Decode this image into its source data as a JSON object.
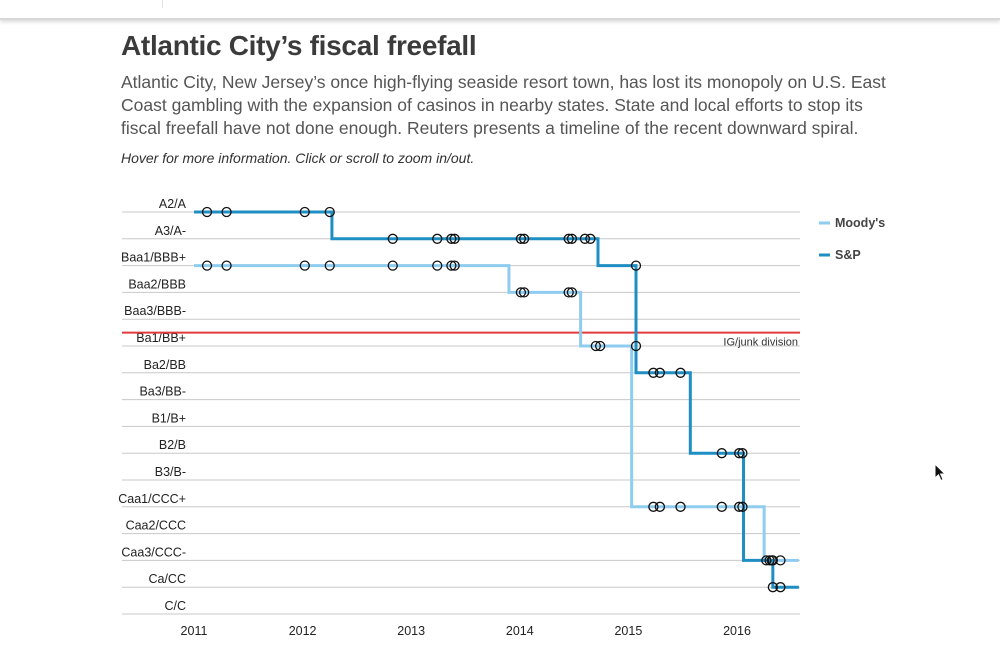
{
  "header": {
    "title": "Atlantic City’s fiscal freefall",
    "description": "Atlantic City, New Jersey’s once high-flying seaside resort town, has lost its monopoly on U.S. East Coast gambling with the expansion of casinos in nearby states. State and local efforts to stop its fiscal freefall have not done enough. Reuters presents a timeline of the recent downward spiral.",
    "hint": "Hover for more information. Click or scroll to zoom in/out."
  },
  "chart_data": {
    "type": "line",
    "step": true,
    "y_categories": [
      "A2/A",
      "A3/A-",
      "Baa1/BBB+",
      "Baa2/BBB",
      "Baa3/BBB-",
      "Ba1/BB+",
      "Ba2/BB",
      "Ba3/BB-",
      "B1/B+",
      "B2/B",
      "B3/B-",
      "Caa1/CCC+",
      "Caa2/CCC",
      "Caa3/CCC-",
      "Ca/CC",
      "C/C"
    ],
    "x_ticks": [
      "2011",
      "2012",
      "2013",
      "2014",
      "2015",
      "2016"
    ],
    "xlim": [
      2011,
      2016.57
    ],
    "grid": true,
    "legend_position": "right",
    "annotation": {
      "label": "IG/junk division",
      "between": [
        "Baa3/BBB-",
        "Ba1/BB+"
      ],
      "color": "#e03a3e"
    },
    "series": [
      {
        "name": "Moody's",
        "color": "#8ecdf0",
        "steps": [
          [
            2011.0,
            "Baa1/BBB+"
          ],
          [
            2013.9,
            "Baa2/BBB"
          ],
          [
            2014.56,
            "Ba1/BB+"
          ],
          [
            2015.03,
            "Caa1/CCC+"
          ],
          [
            2016.25,
            "Caa3/CCC-"
          ],
          [
            2016.57,
            "Caa3/CCC-"
          ]
        ],
        "events": [
          [
            2011.12,
            "Baa1/BBB+"
          ],
          [
            2011.3,
            "Baa1/BBB+"
          ],
          [
            2012.02,
            "Baa1/BBB+"
          ],
          [
            2012.25,
            "Baa1/BBB+"
          ],
          [
            2012.83,
            "Baa1/BBB+"
          ],
          [
            2013.24,
            "Baa1/BBB+"
          ],
          [
            2013.37,
            "Baa1/BBB+"
          ],
          [
            2013.4,
            "Baa1/BBB+"
          ],
          [
            2014.01,
            "Baa2/BBB"
          ],
          [
            2014.04,
            "Baa2/BBB"
          ],
          [
            2014.45,
            "Baa2/BBB"
          ],
          [
            2014.48,
            "Baa2/BBB"
          ],
          [
            2014.7,
            "Ba1/BB+"
          ],
          [
            2014.74,
            "Ba1/BB+"
          ],
          [
            2015.07,
            "Ba1/BB+"
          ],
          [
            2015.23,
            "Caa1/CCC+"
          ],
          [
            2015.29,
            "Caa1/CCC+"
          ],
          [
            2015.48,
            "Caa1/CCC+"
          ],
          [
            2015.86,
            "Caa1/CCC+"
          ],
          [
            2016.02,
            "Caa1/CCC+"
          ],
          [
            2016.05,
            "Caa1/CCC+"
          ],
          [
            2016.27,
            "Caa3/CCC-"
          ],
          [
            2016.32,
            "Caa3/CCC-"
          ],
          [
            2016.4,
            "Caa3/CCC-"
          ]
        ]
      },
      {
        "name": "S&P",
        "color": "#1f8ec2",
        "steps": [
          [
            2011.0,
            "A2/A"
          ],
          [
            2012.27,
            "A3/A-"
          ],
          [
            2014.72,
            "Baa1/BBB+"
          ],
          [
            2015.07,
            "Ba2/BB"
          ],
          [
            2015.57,
            "B2/B"
          ],
          [
            2016.06,
            "Caa3/CCC-"
          ],
          [
            2016.33,
            "Ca/CC"
          ],
          [
            2016.57,
            "Ca/CC"
          ]
        ],
        "events": [
          [
            2011.12,
            "A2/A"
          ],
          [
            2011.3,
            "A2/A"
          ],
          [
            2012.02,
            "A2/A"
          ],
          [
            2012.25,
            "A2/A"
          ],
          [
            2012.83,
            "A3/A-"
          ],
          [
            2013.24,
            "A3/A-"
          ],
          [
            2013.37,
            "A3/A-"
          ],
          [
            2013.4,
            "A3/A-"
          ],
          [
            2014.01,
            "A3/A-"
          ],
          [
            2014.04,
            "A3/A-"
          ],
          [
            2014.45,
            "A3/A-"
          ],
          [
            2014.48,
            "A3/A-"
          ],
          [
            2014.6,
            "A3/A-"
          ],
          [
            2014.65,
            "A3/A-"
          ],
          [
            2015.07,
            "Baa1/BBB+"
          ],
          [
            2015.23,
            "Ba2/BB"
          ],
          [
            2015.29,
            "Ba2/BB"
          ],
          [
            2015.48,
            "Ba2/BB"
          ],
          [
            2015.86,
            "B2/B"
          ],
          [
            2016.02,
            "B2/B"
          ],
          [
            2016.05,
            "B2/B"
          ],
          [
            2016.3,
            "Caa3/CCC-"
          ],
          [
            2016.33,
            "Caa3/CCC-"
          ],
          [
            2016.33,
            "Ca/CC"
          ],
          [
            2016.4,
            "Ca/CC"
          ]
        ]
      }
    ]
  }
}
